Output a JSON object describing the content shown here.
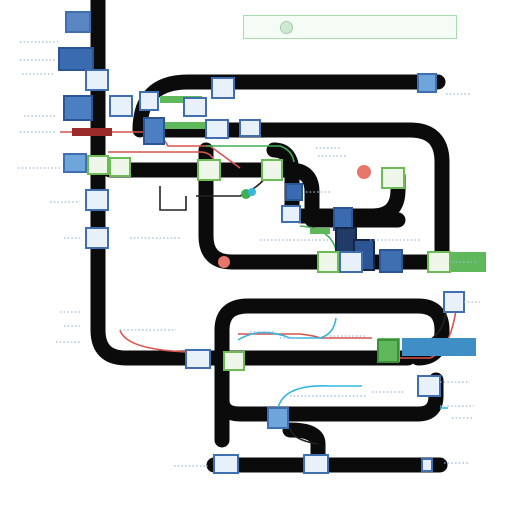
{
  "legend": {
    "text": ""
  },
  "colors": {
    "track": "#0b0b0b",
    "node_blue_border": "#3f6fb0",
    "node_green_border": "#6dbb55",
    "node_fill": "#e8f0fa",
    "green_bar": "#5fb85a",
    "wire_red": "#d9534f",
    "wire_cyan": "#35b7e0",
    "wire_green": "#3fae55",
    "wire_dark": "#222222",
    "dot_text": "#9ab7d6"
  },
  "icons": [
    "node-icon",
    "status-dot-icon",
    "legend-icon"
  ]
}
